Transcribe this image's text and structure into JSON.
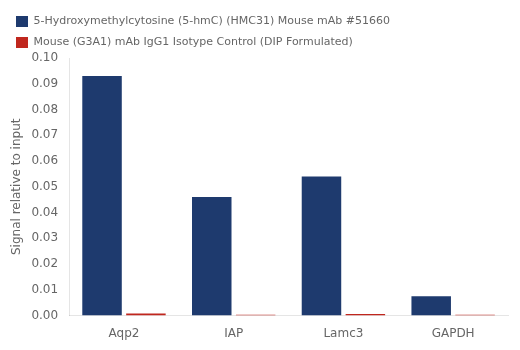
{
  "chart_data": {
    "type": "bar",
    "categories": [
      "Aqp2",
      "IAP",
      "Lamc3",
      "GAPDH"
    ],
    "series": [
      {
        "name": "5-Hydroxymethylcytosine (5-hmC) (HMC31) Mouse mAb #51660",
        "color": "#1e3a6e",
        "values": [
          0.093,
          0.046,
          0.054,
          0.0075
        ]
      },
      {
        "name": "Mouse (G3A1) mAb IgG1 Isotype Control (DIP Formulated)",
        "color": "#c0271e",
        "values": [
          0.0008,
          0.0003,
          0.0006,
          0.0003
        ]
      }
    ],
    "ylabel": "Signal relative to input",
    "ylim": [
      0,
      0.1
    ],
    "yticks": [
      {
        "value": 0,
        "label": "0.00"
      },
      0.01,
      0.02,
      0.03,
      0.04,
      0.05,
      0.06,
      0.07,
      0.08,
      0.09,
      {
        "value": 0.1,
        "label": "0.10"
      }
    ],
    "grid": false,
    "legend": "upper left"
  }
}
